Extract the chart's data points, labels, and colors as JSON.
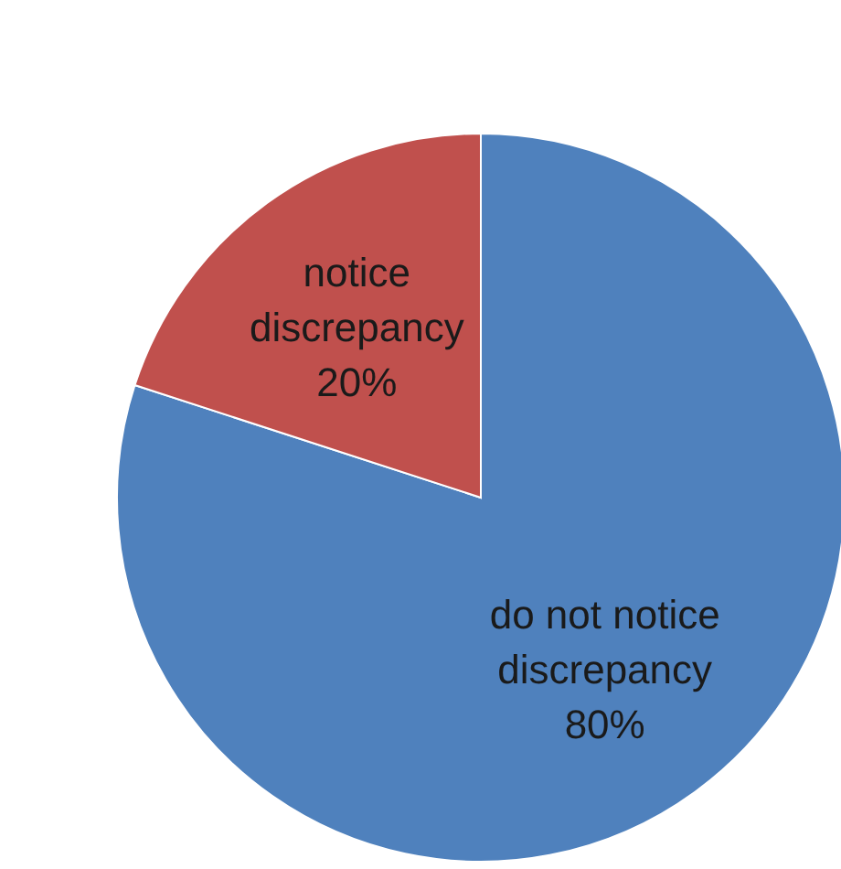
{
  "chart_data": {
    "type": "pie",
    "categories": [
      "do not notice discrepancy",
      "notice discrepancy"
    ],
    "values": [
      80,
      20
    ],
    "colors": [
      "#4f81bd",
      "#c0504d"
    ],
    "value_labels": [
      "80%",
      "20%"
    ]
  }
}
